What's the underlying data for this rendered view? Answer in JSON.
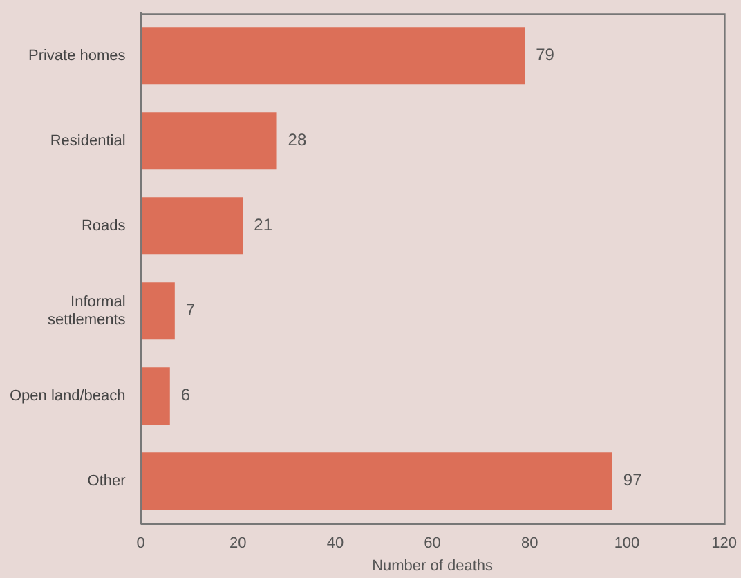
{
  "chart_data": {
    "type": "bar",
    "orientation": "horizontal",
    "xlabel": "Number of deaths",
    "categories": [
      "Private homes",
      "Residential",
      "Roads",
      "Informal settlements",
      "Open land/beach",
      "Other"
    ],
    "values": [
      79,
      28,
      21,
      7,
      6,
      97
    ],
    "color": "#dc6f58",
    "data_labels": true,
    "xlim": [
      0,
      120
    ],
    "xticks": [
      0,
      20,
      40,
      60,
      80,
      100,
      120
    ],
    "grid": false,
    "legend": false
  }
}
